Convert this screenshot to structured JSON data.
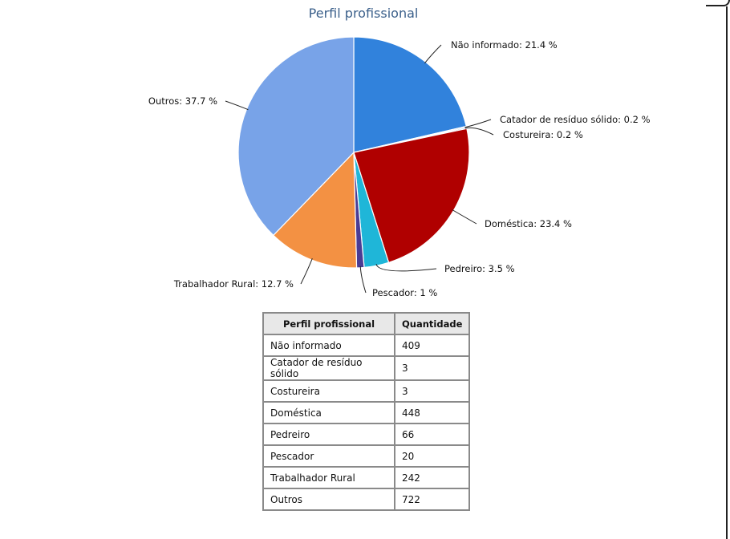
{
  "chart_data": {
    "type": "pie",
    "title": "Perfil profissional",
    "slices": [
      {
        "label": "Não informado",
        "value": 409,
        "percent_label": "21.4 %",
        "color": "#3182dc"
      },
      {
        "label": "Catador de resíduo sólido",
        "value": 3,
        "percent_label": "0.2 %",
        "color": "#6c9cd8"
      },
      {
        "label": "Costureira",
        "value": 3,
        "percent_label": "0.2 %",
        "color": "#5a8fd0"
      },
      {
        "label": "Doméstica",
        "value": 448,
        "percent_label": "23.4 %",
        "color": "#b00000"
      },
      {
        "label": "Pedreiro",
        "value": 66,
        "percent_label": "3.5 %",
        "color": "#1fb6d8"
      },
      {
        "label": "Pescador",
        "value": 20,
        "percent_label": "1 %",
        "color": "#4a3c94"
      },
      {
        "label": "Trabalhador Rural",
        "value": 242,
        "percent_label": "12.7 %",
        "color": "#f39143"
      },
      {
        "label": "Outros",
        "value": 722,
        "percent_label": "37.7 %",
        "color": "#78a3e8"
      }
    ]
  },
  "table": {
    "headers": [
      "Perfil profissional",
      "Quantidade"
    ],
    "rows": [
      [
        "Não informado",
        "409"
      ],
      [
        "Catador de resíduo sólido",
        "3"
      ],
      [
        "Costureira",
        "3"
      ],
      [
        "Doméstica",
        "448"
      ],
      [
        "Pedreiro",
        "66"
      ],
      [
        "Pescador",
        "20"
      ],
      [
        "Trabalhador Rural",
        "242"
      ],
      [
        "Outros",
        "722"
      ]
    ]
  }
}
